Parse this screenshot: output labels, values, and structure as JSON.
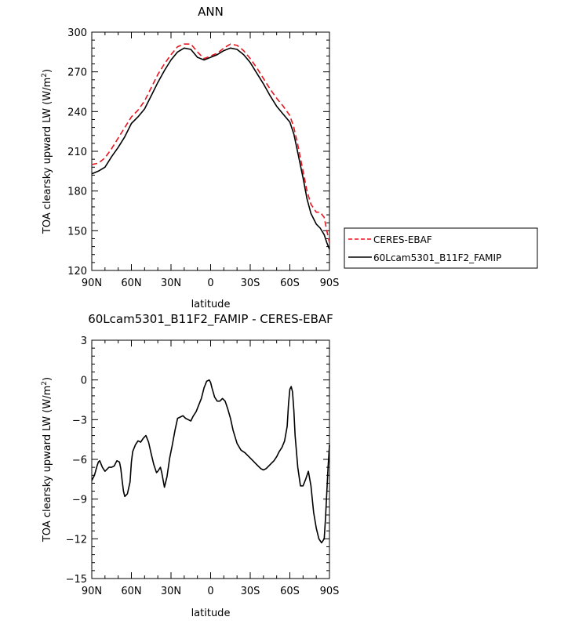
{
  "chart_data": [
    {
      "type": "line",
      "title": "ANN",
      "xlabel": "latitude",
      "ylabel": "TOA clearsky upward LW (W/m²)",
      "ylabel_parts": {
        "main": "TOA clearsky upward LW (W/m",
        "sup": "2",
        "close": ")"
      },
      "xlim": [
        90,
        -90
      ],
      "ylim": [
        120,
        300
      ],
      "xticks": [
        {
          "value": 90,
          "label": "90N"
        },
        {
          "value": 60,
          "label": "60N"
        },
        {
          "value": 30,
          "label": "30N"
        },
        {
          "value": 0,
          "label": "0"
        },
        {
          "value": -30,
          "label": "30S"
        },
        {
          "value": -60,
          "label": "60S"
        },
        {
          "value": -90,
          "label": "90S"
        }
      ],
      "yticks": [
        {
          "value": 120,
          "label": "120"
        },
        {
          "value": 150,
          "label": "150"
        },
        {
          "value": 180,
          "label": "180"
        },
        {
          "value": 210,
          "label": "210"
        },
        {
          "value": 240,
          "label": "240"
        },
        {
          "value": 270,
          "label": "270"
        },
        {
          "value": 300,
          "label": "300"
        }
      ],
      "legend": {
        "placement": "outside-right"
      },
      "series": [
        {
          "name": "CERES-EBAF",
          "color": "#e8141e",
          "dash": "dashed",
          "x": [
            90,
            85,
            80,
            75,
            70,
            65,
            60,
            55,
            50,
            45,
            40,
            35,
            30,
            25,
            20,
            15,
            10,
            5,
            0,
            -5,
            -10,
            -15,
            -20,
            -25,
            -30,
            -35,
            -40,
            -45,
            -50,
            -55,
            -60,
            -63,
            -66,
            -70,
            -73,
            -76,
            -80,
            -83,
            -86,
            -88,
            -90
          ],
          "y": [
            200,
            201,
            205,
            212,
            220,
            228,
            236,
            241,
            248,
            258,
            268,
            276,
            283,
            289,
            291,
            291,
            285,
            280,
            282,
            284,
            288,
            291,
            290,
            286,
            280,
            273,
            265,
            257,
            250,
            244,
            237,
            228,
            215,
            195,
            180,
            170,
            164,
            164,
            160,
            150,
            141
          ]
        },
        {
          "name": "60Lcam5301_B11F2_FAMIP",
          "color": "#000000",
          "dash": "solid",
          "x": [
            90,
            85,
            80,
            75,
            70,
            65,
            60,
            55,
            50,
            45,
            40,
            35,
            30,
            25,
            20,
            15,
            10,
            5,
            0,
            -5,
            -10,
            -15,
            -20,
            -25,
            -30,
            -35,
            -40,
            -45,
            -50,
            -55,
            -60,
            -63,
            -66,
            -70,
            -73,
            -76,
            -80,
            -83,
            -86,
            -88,
            -90
          ],
          "y": [
            193,
            195,
            198,
            206,
            213,
            221,
            231,
            236,
            242,
            252,
            262,
            271,
            279,
            285,
            288,
            287,
            281,
            279,
            281,
            283,
            286,
            288,
            287,
            283,
            277,
            269,
            261,
            252,
            244,
            238,
            232,
            223,
            209,
            190,
            174,
            163,
            155,
            152,
            147,
            141,
            136
          ]
        }
      ]
    },
    {
      "type": "line",
      "title": "60Lcam5301_B11F2_FAMIP - CERES-EBAF",
      "xlabel": "latitude",
      "ylabel": "TOA clearsky upward LW (W/m²)",
      "ylabel_parts": {
        "main": "TOA clearsky upward LW (W/m",
        "sup": "2",
        "close": ")"
      },
      "xlim": [
        90,
        -90
      ],
      "ylim": [
        -15,
        3
      ],
      "xticks": [
        {
          "value": 90,
          "label": "90N"
        },
        {
          "value": 60,
          "label": "60N"
        },
        {
          "value": 30,
          "label": "30N"
        },
        {
          "value": 0,
          "label": "0"
        },
        {
          "value": -30,
          "label": "30S"
        },
        {
          "value": -60,
          "label": "60S"
        },
        {
          "value": -90,
          "label": "90S"
        }
      ],
      "yticks": [
        {
          "value": -15,
          "label": "−15"
        },
        {
          "value": -12,
          "label": "−12"
        },
        {
          "value": -9,
          "label": "−9"
        },
        {
          "value": -6,
          "label": "−6"
        },
        {
          "value": -3,
          "label": "−3"
        },
        {
          "value": 0,
          "label": "0"
        },
        {
          "value": 3,
          "label": "3"
        }
      ],
      "series": [
        {
          "color": "#000000",
          "dash": "solid",
          "x": [
            90,
            88,
            86,
            85,
            84,
            82,
            80,
            78,
            77,
            75,
            73,
            71,
            69,
            68,
            67,
            66,
            65,
            63,
            61,
            60,
            59,
            57,
            55,
            53,
            51,
            50,
            49,
            47,
            45,
            43,
            41,
            40,
            38,
            37,
            35,
            33,
            31,
            29,
            27,
            25,
            23,
            21,
            19,
            17,
            15,
            14,
            13,
            11,
            9,
            7,
            5,
            3,
            1,
            0,
            -1,
            -3,
            -5,
            -7,
            -9,
            -11,
            -13,
            -15,
            -17,
            -20,
            -23,
            -26,
            -29,
            -32,
            -35,
            -38,
            -40,
            -42,
            -44,
            -46,
            -48,
            -50,
            -52,
            -54,
            -56,
            -58,
            -59,
            -60,
            -61,
            -62,
            -63,
            -64,
            -66,
            -68,
            -70,
            -72,
            -74,
            -76,
            -78,
            -80,
            -82,
            -84,
            -86,
            -87,
            -88,
            -89,
            -90
          ],
          "y": [
            -7.6,
            -7.2,
            -6.5,
            -6.2,
            -6.1,
            -6.6,
            -6.9,
            -6.7,
            -6.6,
            -6.6,
            -6.5,
            -6.1,
            -6.2,
            -6.7,
            -7.6,
            -8.4,
            -8.8,
            -8.6,
            -7.7,
            -6.2,
            -5.4,
            -4.9,
            -4.6,
            -4.7,
            -4.4,
            -4.3,
            -4.2,
            -4.7,
            -5.6,
            -6.4,
            -7.0,
            -6.9,
            -6.6,
            -7.0,
            -8.1,
            -7.3,
            -5.9,
            -4.9,
            -3.8,
            -2.9,
            -2.8,
            -2.7,
            -2.9,
            -3.0,
            -3.1,
            -2.9,
            -2.7,
            -2.4,
            -1.9,
            -1.4,
            -0.6,
            -0.1,
            0.0,
            -0.2,
            -0.6,
            -1.3,
            -1.6,
            -1.6,
            -1.4,
            -1.6,
            -2.2,
            -2.9,
            -3.8,
            -4.8,
            -5.3,
            -5.5,
            -5.8,
            -6.1,
            -6.4,
            -6.7,
            -6.8,
            -6.7,
            -6.5,
            -6.3,
            -6.1,
            -5.8,
            -5.4,
            -5.1,
            -4.6,
            -3.5,
            -1.8,
            -0.7,
            -0.5,
            -0.9,
            -2.3,
            -4.2,
            -6.6,
            -8.0,
            -8.0,
            -7.5,
            -6.9,
            -8.0,
            -10.0,
            -11.2,
            -12.0,
            -12.3,
            -12.0,
            -10.5,
            -8.5,
            -6.5,
            -4.9
          ]
        }
      ]
    }
  ]
}
